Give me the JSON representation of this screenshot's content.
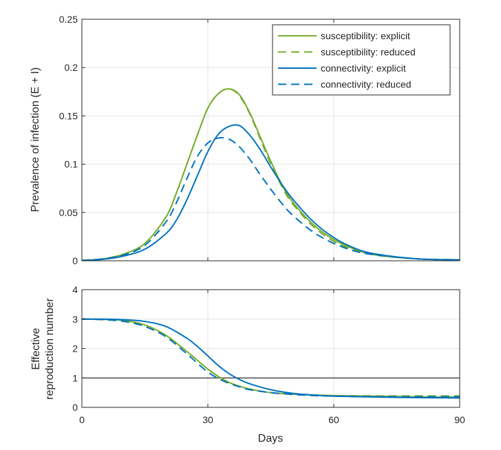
{
  "colors": {
    "green": "#77ac30",
    "blue": "#0072bd",
    "ref_line": "#000000"
  },
  "x_axis": {
    "label": "Days",
    "ticks": [
      0,
      30,
      60,
      90
    ],
    "range": [
      0,
      90
    ]
  },
  "chart_data": [
    {
      "type": "line",
      "ylabel": "Prevalence of infection (E + I)",
      "xlim": [
        0,
        90
      ],
      "ylim": [
        0,
        0.25
      ],
      "yticks": [
        "0",
        "0.05",
        "0.1",
        "0.15",
        "0.2",
        "0.25"
      ],
      "grid": true,
      "legend_position": "top-right",
      "series": [
        {
          "name": "susceptibility: explicit",
          "color": "green",
          "dash": "solid",
          "x": [
            0,
            5,
            10,
            15,
            20,
            22.5,
            25,
            27.5,
            30,
            32.5,
            35,
            37.5,
            40,
            42.5,
            45,
            47.5,
            50,
            55,
            60,
            65,
            70,
            80,
            90
          ],
          "y": [
            0.0005,
            0.002,
            0.007,
            0.018,
            0.045,
            0.07,
            0.1,
            0.13,
            0.158,
            0.173,
            0.178,
            0.172,
            0.153,
            0.128,
            0.103,
            0.08,
            0.062,
            0.038,
            0.022,
            0.012,
            0.006,
            0.002,
            0.001
          ]
        },
        {
          "name": "susceptibility: reduced",
          "color": "green",
          "dash": "dashed",
          "x": [
            0,
            5,
            10,
            15,
            20,
            22.5,
            25,
            27.5,
            30,
            32.5,
            35,
            37.5,
            40,
            42.5,
            45,
            47.5,
            50,
            55,
            60,
            65,
            70,
            80,
            90
          ],
          "y": [
            0.0005,
            0.002,
            0.007,
            0.018,
            0.045,
            0.07,
            0.1,
            0.13,
            0.158,
            0.173,
            0.178,
            0.171,
            0.152,
            0.126,
            0.1,
            0.078,
            0.06,
            0.036,
            0.02,
            0.011,
            0.006,
            0.002,
            0.001
          ]
        },
        {
          "name": "connectivity: explicit",
          "color": "blue",
          "dash": "solid",
          "x": [
            0,
            5,
            10,
            15,
            20,
            22.5,
            25,
            27.5,
            30,
            32.5,
            35,
            37.5,
            40,
            42.5,
            45,
            47.5,
            50,
            55,
            60,
            65,
            70,
            80,
            90
          ],
          "y": [
            0.0003,
            0.0015,
            0.005,
            0.012,
            0.028,
            0.042,
            0.063,
            0.088,
            0.113,
            0.131,
            0.139,
            0.14,
            0.13,
            0.115,
            0.097,
            0.08,
            0.065,
            0.041,
            0.024,
            0.013,
            0.007,
            0.002,
            0.001
          ]
        },
        {
          "name": "connectivity: reduced",
          "color": "blue",
          "dash": "dashed",
          "x": [
            0,
            5,
            10,
            15,
            20,
            22.5,
            25,
            27.5,
            30,
            32.5,
            35,
            37.5,
            40,
            42.5,
            45,
            47.5,
            50,
            55,
            60,
            65,
            70,
            80,
            90
          ],
          "y": [
            0.0004,
            0.002,
            0.006,
            0.016,
            0.04,
            0.06,
            0.085,
            0.108,
            0.122,
            0.127,
            0.126,
            0.118,
            0.105,
            0.089,
            0.074,
            0.06,
            0.048,
            0.03,
            0.018,
            0.01,
            0.006,
            0.002,
            0.001
          ]
        }
      ]
    },
    {
      "type": "line",
      "ylabel": "Effective reproduction number",
      "ylabel_lines": [
        "Effective",
        "reproduction number"
      ],
      "xlabel": "Days",
      "xlim": [
        0,
        90
      ],
      "ylim": [
        0,
        4
      ],
      "yticks": [
        "0",
        "1",
        "2",
        "3",
        "4"
      ],
      "xticks": [
        "0",
        "30",
        "60",
        "90"
      ],
      "grid": true,
      "reference_line": {
        "y": 1,
        "color": "ref_line"
      },
      "series": [
        {
          "name": "susceptibility: explicit",
          "color": "green",
          "dash": "solid",
          "x": [
            0,
            5,
            10,
            15,
            20,
            25,
            27.5,
            30,
            32.5,
            35,
            37.5,
            40,
            45,
            50,
            55,
            60,
            70,
            80,
            90
          ],
          "y": [
            3.0,
            2.99,
            2.95,
            2.8,
            2.45,
            1.9,
            1.6,
            1.3,
            1.05,
            0.85,
            0.72,
            0.62,
            0.5,
            0.45,
            0.42,
            0.4,
            0.38,
            0.36,
            0.35
          ]
        },
        {
          "name": "susceptibility: reduced",
          "color": "green",
          "dash": "dashed",
          "x": [
            0,
            5,
            10,
            15,
            20,
            25,
            27.5,
            30,
            32.5,
            35,
            37.5,
            40,
            45,
            50,
            55,
            60,
            70,
            80,
            90
          ],
          "y": [
            3.0,
            2.99,
            2.95,
            2.8,
            2.45,
            1.9,
            1.6,
            1.3,
            1.05,
            0.85,
            0.72,
            0.62,
            0.5,
            0.45,
            0.42,
            0.4,
            0.39,
            0.39,
            0.39
          ]
        },
        {
          "name": "connectivity: explicit",
          "color": "blue",
          "dash": "solid",
          "x": [
            0,
            5,
            10,
            15,
            20,
            25,
            27.5,
            30,
            32.5,
            35,
            37.5,
            40,
            45,
            50,
            55,
            60,
            70,
            80,
            90
          ],
          "y": [
            3.0,
            3.0,
            2.98,
            2.92,
            2.75,
            2.35,
            2.07,
            1.75,
            1.42,
            1.15,
            0.95,
            0.8,
            0.6,
            0.48,
            0.42,
            0.38,
            0.35,
            0.33,
            0.32
          ]
        },
        {
          "name": "connectivity: reduced",
          "color": "blue",
          "dash": "dashed",
          "x": [
            0,
            5,
            10,
            15,
            20,
            25,
            27.5,
            30,
            32.5,
            35,
            37.5,
            40,
            45,
            50,
            55,
            60,
            70,
            80,
            90
          ],
          "y": [
            3.0,
            2.98,
            2.92,
            2.75,
            2.4,
            1.82,
            1.5,
            1.2,
            0.98,
            0.82,
            0.7,
            0.6,
            0.5,
            0.44,
            0.4,
            0.38,
            0.36,
            0.36,
            0.36
          ]
        }
      ]
    }
  ]
}
